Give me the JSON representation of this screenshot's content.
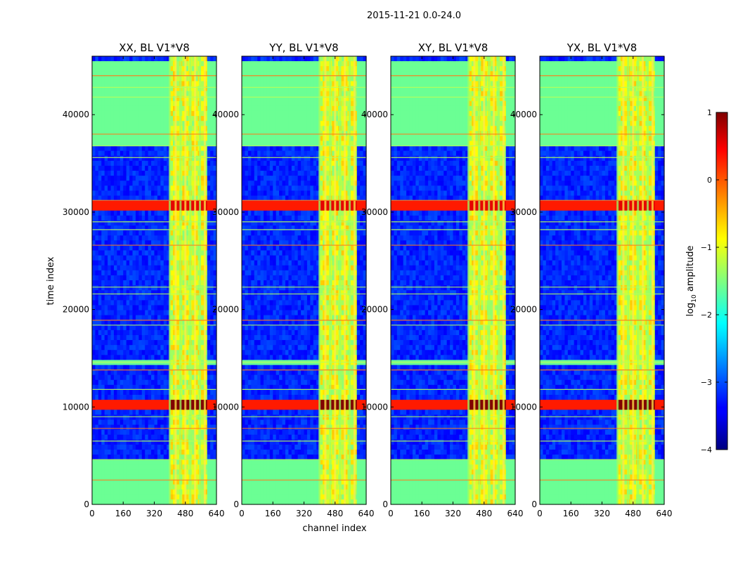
{
  "chart_data": {
    "type": "heatmap",
    "suptitle": "2015-11-21 0.0-24.0",
    "xlabel": "channel index",
    "ylabel": "time index",
    "xlim": [
      0,
      640
    ],
    "ylim": [
      0,
      46000
    ],
    "xticks": [
      0,
      160,
      320,
      480,
      640
    ],
    "yticks": [
      0,
      10000,
      20000,
      30000,
      40000
    ],
    "panels": [
      {
        "title": "XX, BL V1*V8",
        "band_start_channel": 400
      },
      {
        "title": "YY, BL V1*V8",
        "band_start_channel": 400
      },
      {
        "title": "XY, BL V1*V8",
        "band_start_channel": 400
      },
      {
        "title": "YX, BL V1*V8",
        "band_start_channel": 400
      }
    ],
    "rfi_band_channels": [
      400,
      590
    ],
    "rfi_band_columns": [
      400,
      430,
      455,
      480,
      505,
      530,
      555,
      580
    ],
    "hot_time_bands": [
      {
        "start": 9700,
        "end": 10500,
        "level": 1.0
      },
      {
        "start": 30000,
        "end": 31000,
        "level": 0.9
      }
    ],
    "flag_lines_time": [
      2500,
      4600,
      6500,
      7800,
      9000,
      11800,
      13800,
      14600,
      18400,
      18900,
      21600,
      22300,
      26600,
      28200,
      29000,
      31200,
      35600,
      36800,
      38000,
      41800,
      42800,
      44000
    ],
    "green_time_bands": [
      {
        "start": 200,
        "end": 4500
      },
      {
        "start": 14200,
        "end": 14800
      },
      {
        "start": 36700,
        "end": 45500
      }
    ],
    "colorbar": {
      "label_prefix": "log",
      "label_sub": "10",
      "label_suffix": " amplitude",
      "range": [
        -4,
        1
      ],
      "ticks": [
        1,
        0,
        -1,
        -2,
        -3,
        -4
      ],
      "tick_labels": [
        "1",
        "0",
        "−1",
        "−2",
        "−3",
        "−4"
      ],
      "colormap": "jet"
    }
  }
}
